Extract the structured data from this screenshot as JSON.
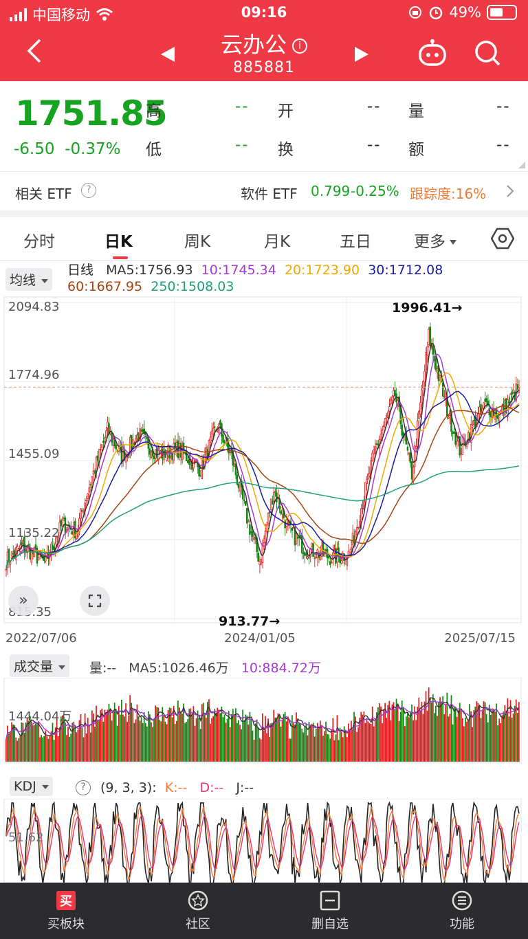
{
  "status": {
    "carrier": "中国移动",
    "time": "09:16",
    "battery": "49%"
  },
  "nav": {
    "title": "云办公",
    "code": "885881"
  },
  "quote": {
    "price": "1751.85",
    "change": "-6.50",
    "change_pct": "-0.37%",
    "fields": [
      {
        "label": "高",
        "value": "--"
      },
      {
        "label": "开",
        "value": "--"
      },
      {
        "label": "量",
        "value": "--"
      },
      {
        "label": "低",
        "value": "--"
      },
      {
        "label": "换",
        "value": "--"
      },
      {
        "label": "额",
        "value": "--"
      }
    ]
  },
  "etf": {
    "label": "相关 ETF",
    "name": "软件 ETF",
    "price": "0.799",
    "change": "-0.25%",
    "tracking": "跟踪度:16%"
  },
  "tabs": [
    "分时",
    "日K",
    "周K",
    "月K",
    "五日",
    "更多"
  ],
  "ma": {
    "selector": "均线",
    "kind": "日线",
    "ma5": "MA5:1756.93",
    "ma10": "10:1745.34",
    "ma20": "20:1723.90",
    "ma30": "30:1712.08",
    "ma60": "60:1667.95",
    "ma250": "250:1508.03"
  },
  "colors": {
    "up": "#e41a1c",
    "down": "#13860f",
    "ma5": "#333333",
    "ma10": "#a73ad6",
    "ma20": "#f0a800",
    "ma30": "#1b1b9c",
    "ma60": "#a84410",
    "ma250": "#1fa07a",
    "accent": "#ef3a45"
  },
  "chart_data": [
    {
      "type": "candlestick",
      "y_ticks": [
        "2094.83",
        "1774.96",
        "1455.09",
        "1135.22",
        "815.35"
      ],
      "ylim": [
        815.35,
        2094.83
      ],
      "x_ticks": [
        "2022/07/06",
        "2024/01/05",
        "2025/07/15"
      ],
      "high_marker": "1996.41→",
      "low_marker": "913.77→",
      "last_close": 1751.85,
      "anchors": [
        [
          0,
          1050
        ],
        [
          12,
          1110
        ],
        [
          28,
          1040
        ],
        [
          40,
          1200
        ],
        [
          50,
          1170
        ],
        [
          60,
          1370
        ],
        [
          72,
          1580
        ],
        [
          82,
          1470
        ],
        [
          94,
          1560
        ],
        [
          108,
          1480
        ],
        [
          122,
          1500
        ],
        [
          138,
          1420
        ],
        [
          150,
          1600
        ],
        [
          160,
          1470
        ],
        [
          172,
          1200
        ],
        [
          180,
          1050
        ],
        [
          190,
          1340
        ],
        [
          200,
          1180
        ],
        [
          212,
          1100
        ],
        [
          232,
          1060
        ],
        [
          244,
          1080
        ],
        [
          262,
          1500
        ],
        [
          276,
          1720
        ],
        [
          288,
          1400
        ],
        [
          300,
          1960
        ],
        [
          312,
          1680
        ],
        [
          322,
          1500
        ],
        [
          340,
          1680
        ],
        [
          350,
          1640
        ],
        [
          364,
          1752
        ]
      ]
    },
    {
      "type": "bar",
      "label": "成交量",
      "vol": "量:--",
      "ma5": "MA5:1026.46万",
      "ma10": "10:884.72万",
      "y_tick": "1444.04万"
    },
    {
      "type": "line",
      "label": "KDJ",
      "params": "(9, 3, 3):",
      "k": "K:--",
      "d": "D:--",
      "j": "J:--",
      "y_tick": "51.62"
    }
  ],
  "bottom_nav": [
    "买板块",
    "社区",
    "删自选",
    "功能"
  ]
}
